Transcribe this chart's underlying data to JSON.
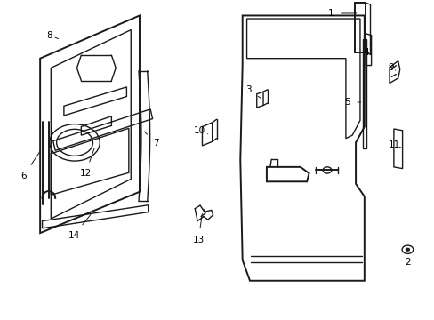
{
  "bg_color": "#ffffff",
  "line_color": "#1a1a1a",
  "label_color": "#000000",
  "fig_width": 4.89,
  "fig_height": 3.6,
  "dpi": 100
}
